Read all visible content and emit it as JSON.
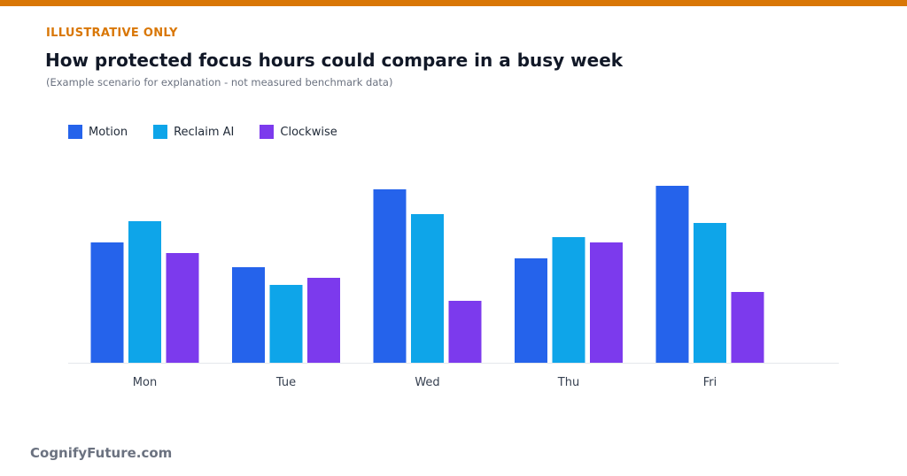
{
  "header": {
    "tag": "ILLUSTRATIVE ONLY",
    "title": "How protected focus hours could compare in a busy week",
    "subtitle": "(Example scenario for explanation - not measured benchmark data)"
  },
  "footer": {
    "brand": "CognifyFuture.com"
  },
  "colors": {
    "accent": "#d97706",
    "motion": "#2563eb",
    "reclaim": "#0ea5e9",
    "clockwise": "#7c3aed",
    "axis": "#e5e7eb"
  },
  "chart_data": {
    "type": "bar",
    "categories": [
      "Mon",
      "Tue",
      "Wed",
      "Thu",
      "Fri"
    ],
    "series": [
      {
        "name": "Motion",
        "values": [
          3.4,
          2.7,
          4.9,
          2.95,
          5.0
        ]
      },
      {
        "name": "Reclaim AI",
        "values": [
          4.0,
          2.2,
          4.2,
          3.55,
          3.95
        ]
      },
      {
        "name": "Clockwise",
        "values": [
          3.1,
          2.4,
          1.75,
          3.4,
          2.0
        ]
      }
    ],
    "ylim": [
      0,
      8
    ],
    "grid": false,
    "legend_position": "top-left"
  }
}
